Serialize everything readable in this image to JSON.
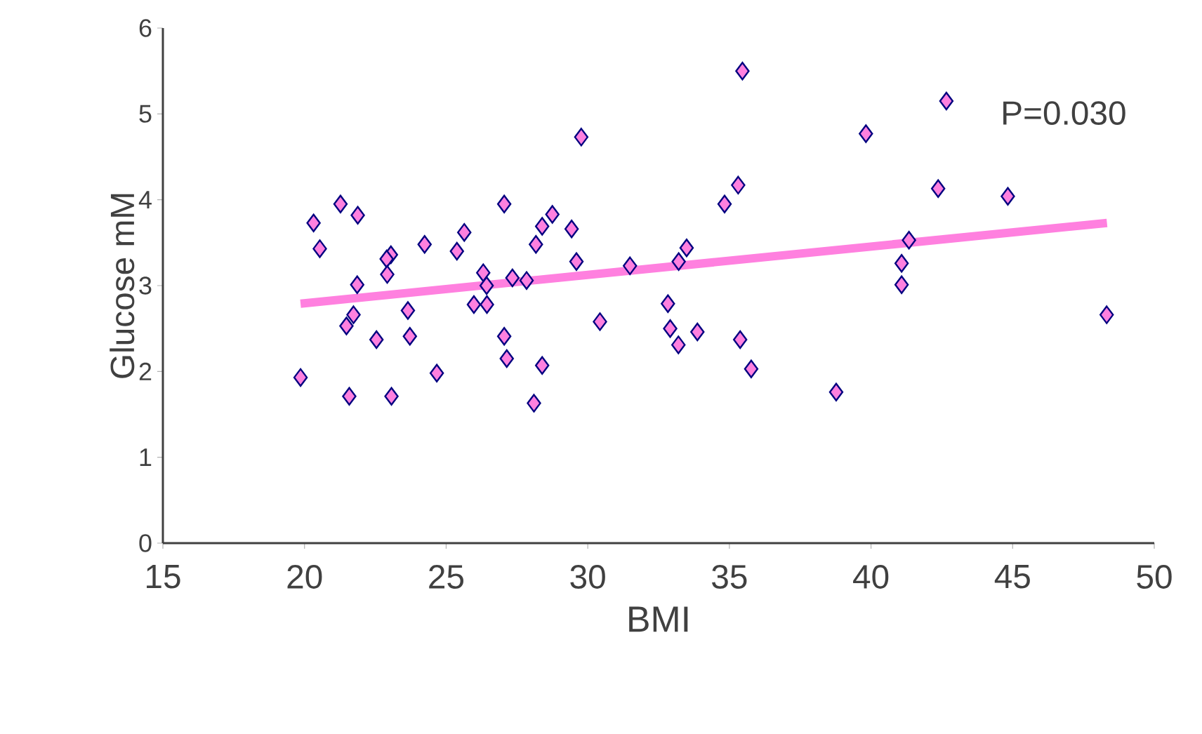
{
  "chart_data": {
    "type": "scatter",
    "xlabel": "BMI",
    "ylabel": "Glucose  mM",
    "xlim": [
      15,
      50
    ],
    "xticks": [
      15,
      20,
      25,
      30,
      35,
      40,
      45,
      50
    ],
    "ylim": [
      0,
      6
    ],
    "yticks": [
      0,
      1,
      2,
      3,
      4,
      5,
      6
    ],
    "grid": false,
    "annotations": [
      "P=0.030"
    ],
    "series": [
      {
        "marker": "diamond",
        "color": "#ff80df",
        "x": [
          19.86,
          20.32,
          20.54,
          21.27,
          21.88,
          21.86,
          21.73,
          21.48,
          21.58,
          23.05,
          22.9,
          22.92,
          22.54,
          23.65,
          23.72,
          23.07,
          24.24,
          24.67,
          25.38,
          25.64,
          26.31,
          26.43,
          25.98,
          26.44,
          27.05,
          27.05,
          27.14,
          27.34,
          27.84,
          28.1,
          28.39,
          28.17,
          28.39,
          28.75,
          29.43,
          29.6,
          29.77,
          30.43,
          31.49,
          32.83,
          32.91,
          33.2,
          33.21,
          33.49,
          33.87,
          34.83,
          35.31,
          35.46,
          35.38,
          35.77,
          39.82,
          42.66,
          42.37,
          44.83,
          41.34,
          41.08,
          41.08,
          48.32,
          38.77
        ],
        "values": [
          1.93,
          3.73,
          3.43,
          3.95,
          3.82,
          3.01,
          2.66,
          2.53,
          1.71,
          3.36,
          3.31,
          3.13,
          2.37,
          2.71,
          2.41,
          1.71,
          3.48,
          1.98,
          3.4,
          3.62,
          3.15,
          3.0,
          2.78,
          2.78,
          3.95,
          2.41,
          2.15,
          3.09,
          3.06,
          1.63,
          2.07,
          3.48,
          3.69,
          3.83,
          3.66,
          3.28,
          4.73,
          2.58,
          3.23,
          2.79,
          2.5,
          2.31,
          3.28,
          3.44,
          2.46,
          3.95,
          4.17,
          5.5,
          2.37,
          2.03,
          4.77,
          5.15,
          4.13,
          4.04,
          3.53,
          3.26,
          3.01,
          2.66,
          1.76
        ]
      },
      {
        "type": "line",
        "marker": "none",
        "color": "#ff80df",
        "x": [
          19.86,
          48.33
        ],
        "values": [
          2.79,
          3.73
        ]
      }
    ]
  }
}
